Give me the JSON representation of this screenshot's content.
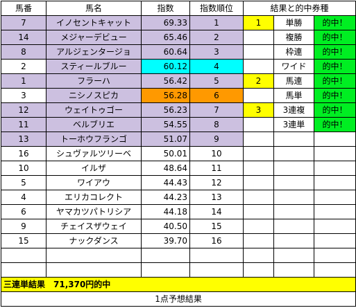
{
  "headers": [
    "馬番",
    "馬名",
    "指数",
    "指数順位",
    "結果と的中券種"
  ],
  "rows": [
    {
      "num": "7",
      "name": "イノセントキャット",
      "index": "69.33",
      "rank": "1",
      "res_pos": "1",
      "bet": "単勝",
      "hit": "的中！"
    },
    {
      "num": "14",
      "name": "メジャーデビュー",
      "index": "65.46",
      "rank": "2",
      "res_pos": "",
      "bet": "複勝",
      "hit": "的中！"
    },
    {
      "num": "8",
      "name": "アルジェンタージョ",
      "index": "60.64",
      "rank": "3",
      "res_pos": "",
      "bet": "枠連",
      "hit": "的中！"
    },
    {
      "num": "2",
      "name": "スティールブルー",
      "index": "60.12",
      "rank": "4",
      "res_pos": "",
      "bet": "ワイド",
      "hit": "的中！"
    },
    {
      "num": "1",
      "name": "フラーハ",
      "index": "56.42",
      "rank": "5",
      "res_pos": "2",
      "bet": "馬連",
      "hit": "的中！"
    },
    {
      "num": "3",
      "name": "ニシノスピカ",
      "index": "56.28",
      "rank": "6",
      "res_pos": "",
      "bet": "馬単",
      "hit": "的中！"
    },
    {
      "num": "12",
      "name": "ウェイトゥゴー",
      "index": "56.23",
      "rank": "7",
      "res_pos": "3",
      "bet": "3連複",
      "hit": "的中！"
    },
    {
      "num": "11",
      "name": "ベルブリエ",
      "index": "54.55",
      "rank": "8",
      "res_pos": "",
      "bet": "3連単",
      "hit": "的中！"
    },
    {
      "num": "13",
      "name": "トーホウフランゴ",
      "index": "51.07",
      "rank": "9",
      "res_pos": "",
      "bet": "",
      "hit": ""
    },
    {
      "num": "16",
      "name": "シュヴァルツリーベ",
      "index": "50.01",
      "rank": "10",
      "res_pos": "",
      "bet": "",
      "hit": ""
    },
    {
      "num": "10",
      "name": "イルザ",
      "index": "48.64",
      "rank": "11",
      "res_pos": "",
      "bet": "",
      "hit": ""
    },
    {
      "num": "5",
      "name": "ワイアウ",
      "index": "44.43",
      "rank": "12",
      "res_pos": "",
      "bet": "",
      "hit": ""
    },
    {
      "num": "4",
      "name": "エリカコレクト",
      "index": "44.23",
      "rank": "13",
      "res_pos": "",
      "bet": "",
      "hit": ""
    },
    {
      "num": "6",
      "name": "ヤマカツパトリシア",
      "index": "44.18",
      "rank": "14",
      "res_pos": "",
      "bet": "",
      "hit": ""
    },
    {
      "num": "9",
      "name": "チェイスザウェイ",
      "index": "40.50",
      "rank": "15",
      "res_pos": "",
      "bet": "",
      "hit": ""
    },
    {
      "num": "15",
      "name": "ナックダンス",
      "index": "39.70",
      "rank": "16",
      "res_pos": "",
      "bet": "",
      "hit": ""
    },
    {
      "num": "",
      "name": "",
      "index": "",
      "rank": "",
      "res_pos": "",
      "bet": "",
      "hit": ""
    },
    {
      "num": "",
      "name": "",
      "index": "",
      "rank": "",
      "res_pos": "",
      "bet": "",
      "hit": ""
    }
  ],
  "summary": "三連単結果　71,370円的中",
  "footer_note": "1点予想結果",
  "colors": {
    "lavender": "#ccc0e0",
    "cyan": "#00ffff",
    "orange": "#ff9900",
    "yellow": "#ffff00",
    "green": "#00ee22"
  }
}
